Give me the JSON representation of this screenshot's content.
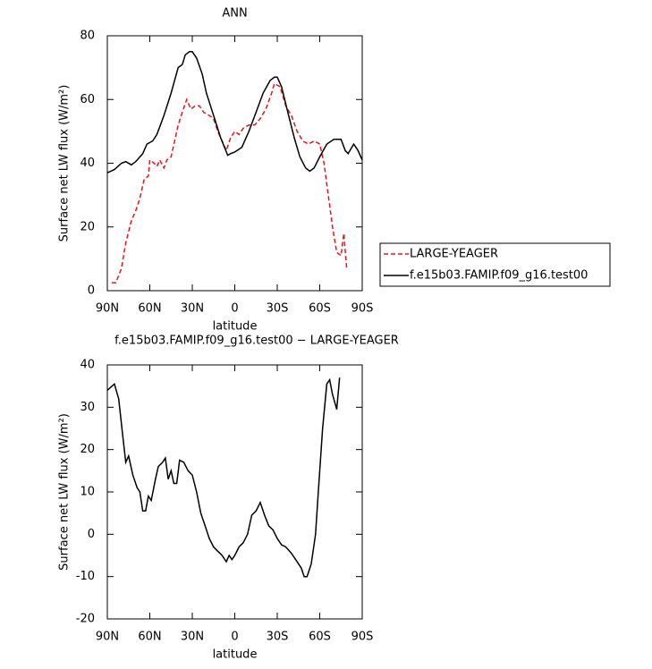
{
  "chart_data": [
    {
      "type": "line",
      "title": "ANN",
      "xlabel": "latitude",
      "ylabel": "Surface net LW flux (W/m²)",
      "xlim": [
        90,
        -90
      ],
      "xticks": [
        {
          "value": 90,
          "label": "90N"
        },
        {
          "value": 60,
          "label": "60N"
        },
        {
          "value": 30,
          "label": "30N"
        },
        0,
        {
          "value": -30,
          "label": "30S"
        },
        {
          "value": -60,
          "label": "60S"
        },
        {
          "value": -90,
          "label": "90S"
        }
      ],
      "ylim": [
        0,
        80
      ],
      "yticks": [
        0,
        20,
        40,
        60,
        80
      ],
      "legend": "right",
      "series": [
        {
          "name": "LARGE-YEAGER",
          "color": "#e8141c",
          "style": "dashed",
          "x": [
            87,
            84,
            80,
            77,
            73,
            70,
            67,
            64,
            61,
            60,
            57,
            55,
            53,
            50,
            48,
            45,
            40,
            37,
            34,
            31,
            28,
            25,
            22,
            18,
            15,
            12,
            9,
            6,
            3,
            0,
            -3,
            -6,
            -10,
            -14,
            -18,
            -22,
            -26,
            -28,
            -32,
            -36,
            -40,
            -44,
            -48,
            -52,
            -56,
            -60,
            -63,
            -66,
            -69,
            -72,
            -75,
            -77,
            -79
          ],
          "values": [
            2.5,
            2.5,
            7,
            15,
            22,
            25,
            29,
            35,
            36,
            41,
            40,
            39,
            41,
            38.5,
            41,
            42,
            52,
            56,
            60,
            57,
            58,
            58,
            56,
            55,
            54,
            50,
            47,
            44,
            48,
            50,
            49,
            51,
            52,
            52,
            54,
            57,
            62,
            65,
            64,
            58,
            55,
            50,
            47,
            46,
            47,
            46,
            40,
            30,
            20,
            12,
            11,
            18,
            7
          ]
        },
        {
          "name": "f.e15b03.FAMIP.f09_g16.test00",
          "color": "#000000",
          "style": "solid",
          "x": [
            90,
            85,
            80,
            77,
            73,
            70,
            65,
            62,
            58,
            55,
            50,
            45,
            40,
            37,
            35,
            32,
            30,
            27,
            23,
            20,
            15,
            10,
            5,
            3,
            0,
            -5,
            -10,
            -15,
            -20,
            -25,
            -28,
            -30,
            -33,
            -38,
            -42,
            -46,
            -50,
            -53,
            -56,
            -60,
            -65,
            -70,
            -75,
            -78,
            -80,
            -84,
            -87,
            -90
          ],
          "values": [
            37,
            38,
            40,
            40.5,
            39.5,
            40.5,
            43,
            46,
            47,
            49,
            55,
            62,
            70,
            71,
            74,
            75,
            75,
            73,
            68,
            62,
            55,
            48,
            42.5,
            43,
            43.5,
            45,
            50,
            56,
            62,
            66,
            67,
            67,
            64,
            55,
            48,
            42,
            38.5,
            37.5,
            38.5,
            42,
            46,
            47.5,
            47.5,
            44,
            43,
            46,
            44,
            41
          ]
        }
      ]
    },
    {
      "type": "line",
      "title": "f.e15b03.FAMIP.f09_g16.test00 − LARGE-YEAGER",
      "xlabel": "latitude",
      "ylabel": "Surface net LW flux (W/m²)",
      "xlim": [
        90,
        -90
      ],
      "xticks": [
        {
          "value": 90,
          "label": "90N"
        },
        {
          "value": 60,
          "label": "60N"
        },
        {
          "value": 30,
          "label": "30N"
        },
        0,
        {
          "value": -30,
          "label": "30S"
        },
        {
          "value": -60,
          "label": "60S"
        },
        {
          "value": -90,
          "label": "90S"
        }
      ],
      "ylim": [
        -20,
        40
      ],
      "yticks": [
        -20,
        -10,
        0,
        10,
        20,
        30,
        40
      ],
      "color": "#000000",
      "x": [
        90,
        85,
        82,
        79,
        77,
        75,
        72,
        69,
        67,
        65,
        63,
        61,
        59,
        56,
        54,
        51,
        49,
        47,
        45,
        43,
        41,
        39,
        36,
        33,
        30,
        27,
        24,
        21,
        18,
        15,
        12,
        9,
        6,
        4,
        2,
        0,
        -3,
        -6,
        -9,
        -12,
        -15,
        -18,
        -21,
        -24,
        -27,
        -30,
        -33,
        -36,
        -40,
        -44,
        -47,
        -49,
        -51,
        -54,
        -57,
        -59,
        -62,
        -65,
        -67,
        -69,
        -72,
        -74
      ],
      "values": [
        34,
        35.5,
        32,
        23,
        17,
        18.5,
        14,
        11,
        10,
        5.5,
        5.5,
        9,
        8,
        13,
        16,
        17,
        18,
        13,
        15,
        12,
        12,
        17.5,
        17,
        15,
        14,
        10,
        5,
        2,
        -1,
        -3,
        -4,
        -5,
        -6.5,
        -5,
        -6,
        -5,
        -3,
        -2,
        0,
        4.5,
        5.5,
        7.5,
        4.5,
        2,
        1,
        -1,
        -2.5,
        -3,
        -4.5,
        -6.5,
        -8,
        -10,
        -10,
        -7,
        0,
        10,
        25,
        35.5,
        36.5,
        33,
        29.5,
        37
      ]
    }
  ]
}
